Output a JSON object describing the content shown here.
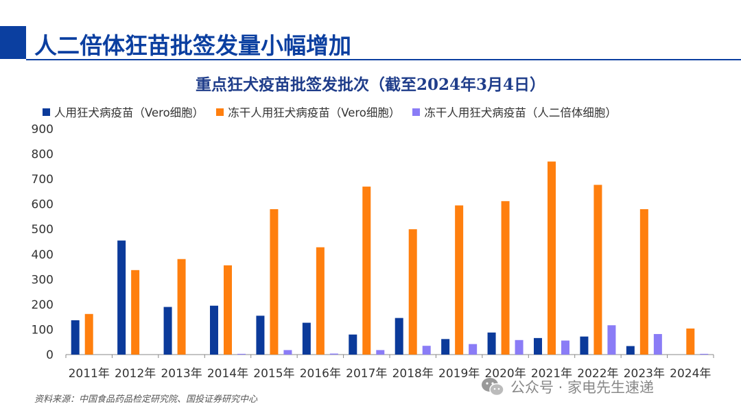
{
  "page_title": "人二倍体狂苗批签发量小幅增加",
  "source": "资料来源：中国食品药品检定研究院、国投证券研究中心",
  "watermark": "公众号 · 家电先生速递",
  "colors": {
    "brand": "#0b3fa0",
    "series": [
      "#0b3a9a",
      "#ff7f0e",
      "#8a7cf6"
    ]
  },
  "chart_data": {
    "type": "bar",
    "title": "重点狂犬疫苗批签发批次（截至2024年3月4日）",
    "xlabel": "",
    "ylabel": "",
    "ylim": [
      0,
      900
    ],
    "yticks": [
      "0",
      "100",
      "200",
      "300",
      "400",
      "500",
      "600",
      "700",
      "800",
      "900"
    ],
    "categories": [
      "2011年",
      "2012年",
      "2013年",
      "2014年",
      "2015年",
      "2016年",
      "2017年",
      "2018年",
      "2019年",
      "2020年",
      "2021年",
      "2022年",
      "2023年",
      "2024年"
    ],
    "series": [
      {
        "name": "人用狂犬病疫苗（Vero细胞）",
        "values": [
          137,
          455,
          190,
          195,
          155,
          127,
          80,
          146,
          62,
          88,
          66,
          72,
          34,
          0
        ]
      },
      {
        "name": "冻干人用狂犬病疫苗（Vero细胞）",
        "values": [
          162,
          337,
          381,
          356,
          580,
          428,
          670,
          500,
          595,
          612,
          770,
          677,
          580,
          104
        ]
      },
      {
        "name": "冻干人用狂犬病疫苗（人二倍体细胞）",
        "values": [
          0,
          0,
          0,
          3,
          18,
          4,
          18,
          35,
          42,
          58,
          56,
          117,
          82,
          3
        ]
      }
    ],
    "legend_position": "top",
    "grid": false
  }
}
